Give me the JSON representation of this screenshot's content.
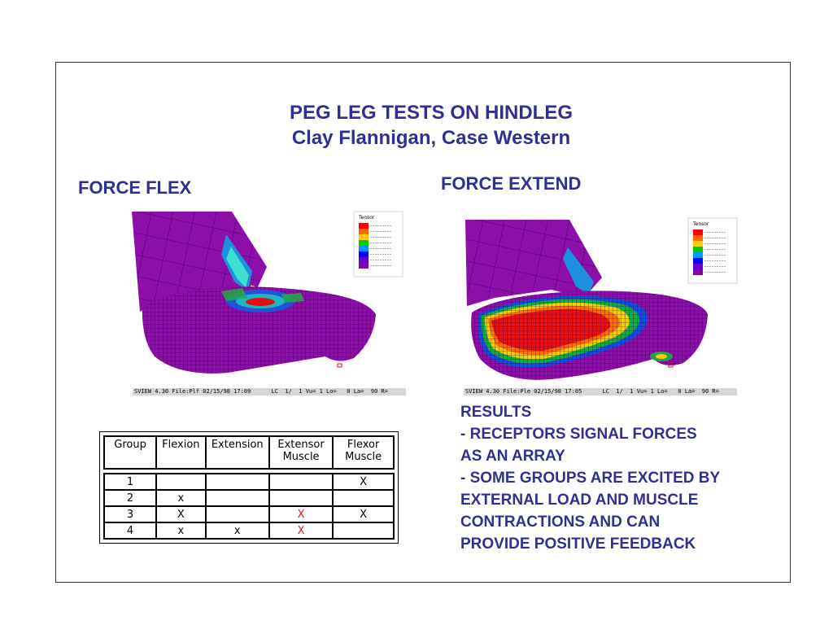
{
  "title": {
    "line1": "PEG LEG TESTS ON HINDLEG",
    "line2": "Clay Flannigan, Case Western"
  },
  "panels": {
    "flex": {
      "heading": "FORCE FLEX",
      "status": "SVIEW 4.30 File:Plf 02/15/98 17:09      LC  1/  1 Vu= 1 Lo=   0 La=  90 R=",
      "legend_title": "Tensor"
    },
    "extend": {
      "heading": "FORCE EXTEND",
      "status": "SVIEW 4.30 File:Ple 02/15/98 17:05      LC  1/  1 Vu= 1 Lo=   0 La=  90 R=",
      "legend_title": "Tensor"
    }
  },
  "legend_colors": [
    "#ff0000",
    "#ff6600",
    "#ffcc00",
    "#00cc00",
    "#0099ff",
    "#0000ff",
    "#6600cc",
    "#8800aa"
  ],
  "table": {
    "headers": [
      {
        "line1": "Group",
        "line2": ""
      },
      {
        "line1": "Flexion",
        "line2": ""
      },
      {
        "line1": "Extension",
        "line2": ""
      },
      {
        "line1": "Extensor",
        "line2": "Muscle"
      },
      {
        "line1": "Flexor",
        "line2": "Muscle"
      }
    ],
    "rows": [
      {
        "group": "1",
        "flexion": "",
        "extension": "",
        "extensor": "",
        "flexor": "X"
      },
      {
        "group": "2",
        "flexion": "x",
        "extension": "",
        "extensor": "",
        "flexor": ""
      },
      {
        "group": "3",
        "flexion": "X",
        "extension": "",
        "extensor": "X",
        "flexor": "X"
      },
      {
        "group": "4",
        "flexion": "x",
        "extension": "x",
        "extensor": "X",
        "flexor": ""
      }
    ]
  },
  "results": [
    "RESULTS",
    "- RECEPTORS SIGNAL FORCES",
    "AS AN ARRAY",
    "- SOME GROUPS ARE EXCITED BY",
    "EXTERNAL LOAD AND MUSCLE",
    "CONTRACTIONS AND CAN",
    "PROVIDE POSITIVE FEEDBACK"
  ]
}
